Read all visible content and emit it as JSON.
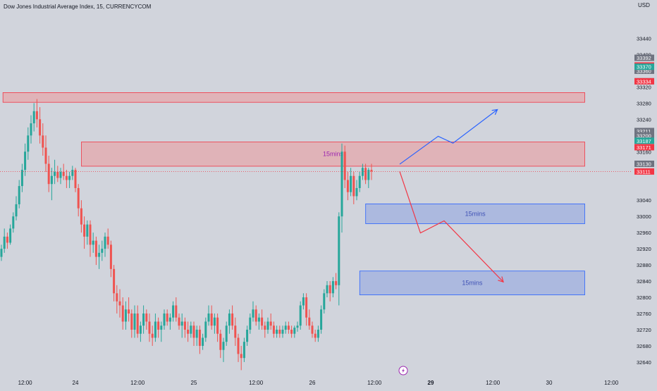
{
  "header": {
    "title": "Dow Jones Industrial Average Index, 15, CURRENCYCOM",
    "currency": "USD"
  },
  "colors": {
    "background": "#d1d4dc",
    "up": "#26a69a",
    "down": "#ef5350",
    "supply_fill": "#e8a1a4",
    "demand_fill": "#9fb0e0",
    "bull_arrow": "#2962ff",
    "bear_arrow": "#f23645",
    "price_line": "#f23645"
  },
  "chart_data": {
    "type": "candlestick",
    "title": "Dow Jones Industrial Average Index, 15, CURRENCYCOM",
    "ylabel": "USD",
    "ylim": [
      32612,
      33500
    ],
    "y_ticks": [
      33440,
      33400,
      33320,
      33280,
      33240,
      33160,
      33040,
      33000,
      32960,
      32920,
      32880,
      32840,
      32800,
      32760,
      32720,
      32680,
      32640
    ],
    "x_tick_labels": [
      {
        "label": "12:00",
        "bar": 8,
        "bold": false
      },
      {
        "label": "24",
        "bar": 25,
        "bold": false
      },
      {
        "label": "12:00",
        "bar": 46,
        "bold": false
      },
      {
        "label": "25",
        "bar": 65,
        "bold": false
      },
      {
        "label": "12:00",
        "bar": 86,
        "bold": false
      },
      {
        "label": "26",
        "bar": 105,
        "bold": false
      },
      {
        "label": "12:00",
        "bar": 126,
        "bold": false
      },
      {
        "label": "29",
        "bar": 145,
        "bold": true
      },
      {
        "label": "12:00",
        "bar": 166,
        "bold": false
      },
      {
        "label": "30",
        "bar": 185,
        "bold": false
      },
      {
        "label": "12:00",
        "bar": 206,
        "bold": false
      }
    ],
    "price_tags": [
      {
        "value": 33392,
        "label": "33392",
        "color": "#6f7380"
      },
      {
        "value": 33373,
        "label": "33373",
        "color": "#f23645"
      },
      {
        "value": 33360,
        "label": "33360",
        "color": "#6f7380"
      },
      {
        "value": 33370,
        "label": "33370",
        "color": "#26a69a"
      },
      {
        "value": 33334,
        "label": "33334",
        "color": "#6f7380"
      },
      {
        "value": 33334,
        "label": "33334",
        "color": "#f23645"
      },
      {
        "value": 33211,
        "label": "33211",
        "color": "#6f7380"
      },
      {
        "value": 33200,
        "label": "33200",
        "color": "#6f7380"
      },
      {
        "value": 33187,
        "label": "33187",
        "color": "#26a69a"
      },
      {
        "value": 33171,
        "label": "33171",
        "color": "#f23645"
      },
      {
        "value": 33130,
        "label": "33130",
        "color": "#6f7380"
      },
      {
        "value": 33111,
        "label": "33111",
        "color": "#f23645"
      }
    ],
    "last_price": 33111,
    "zones": [
      {
        "kind": "supply",
        "x0": 1.0,
        "x1": 197.5,
        "top": 33306,
        "bottom": 33282,
        "label": ""
      },
      {
        "kind": "supply",
        "x0": 27.5,
        "x1": 197.5,
        "top": 33184,
        "bottom": 33124,
        "label": "15mins"
      },
      {
        "kind": "demand",
        "x0": 123.5,
        "x1": 197.5,
        "top": 33031,
        "bottom": 32982,
        "label": "15mins"
      },
      {
        "kind": "demand",
        "x0": 121.5,
        "x1": 197.5,
        "top": 32865,
        "bottom": 32806,
        "label": "15mins"
      }
    ],
    "projections": [
      {
        "kind": "bullish",
        "points": [
          [
            135,
            33129
          ],
          [
            148,
            33198
          ],
          [
            153,
            33181
          ],
          [
            168,
            33264
          ]
        ]
      },
      {
        "kind": "bearish",
        "points": [
          [
            135,
            33111
          ],
          [
            142,
            32959
          ],
          [
            150,
            32989
          ],
          [
            170,
            32838
          ]
        ]
      }
    ],
    "candles": [
      [
        32900,
        32930,
        32890,
        32920
      ],
      [
        32920,
        32970,
        32910,
        32950
      ],
      [
        32950,
        32960,
        32920,
        32935
      ],
      [
        32935,
        32980,
        32930,
        32970
      ],
      [
        32970,
        33010,
        32960,
        33000
      ],
      [
        33000,
        33050,
        32990,
        33030
      ],
      [
        33030,
        33090,
        33020,
        33075
      ],
      [
        33075,
        33130,
        33060,
        33115
      ],
      [
        33115,
        33180,
        33100,
        33160
      ],
      [
        33160,
        33220,
        33140,
        33200
      ],
      [
        33200,
        33250,
        33180,
        33230
      ],
      [
        33230,
        33280,
        33210,
        33260
      ],
      [
        33260,
        33290,
        33220,
        33240
      ],
      [
        33240,
        33270,
        33180,
        33200
      ],
      [
        33200,
        33230,
        33150,
        33170
      ],
      [
        33170,
        33200,
        33110,
        33130
      ],
      [
        33130,
        33150,
        33060,
        33080
      ],
      [
        33080,
        33120,
        33040,
        33100
      ],
      [
        33100,
        33140,
        33080,
        33110
      ],
      [
        33110,
        33125,
        33085,
        33095
      ],
      [
        33095,
        33120,
        33080,
        33110
      ],
      [
        33110,
        33130,
        33090,
        33100
      ],
      [
        33100,
        33115,
        33070,
        33090
      ],
      [
        33090,
        33110,
        33070,
        33100
      ],
      [
        33100,
        33125,
        33090,
        33115
      ],
      [
        33115,
        33120,
        33060,
        33070
      ],
      [
        33070,
        33080,
        33000,
        33020
      ],
      [
        33020,
        33040,
        32960,
        32980
      ],
      [
        32980,
        33000,
        32920,
        32950
      ],
      [
        32950,
        32990,
        32930,
        32980
      ],
      [
        32980,
        32990,
        32900,
        32930
      ],
      [
        32930,
        32960,
        32910,
        32940
      ],
      [
        32940,
        32950,
        32880,
        32900
      ],
      [
        32900,
        32930,
        32870,
        32910
      ],
      [
        32910,
        32940,
        32890,
        32920
      ],
      [
        32920,
        32960,
        32900,
        32950
      ],
      [
        32950,
        32970,
        32920,
        32930
      ],
      [
        32930,
        32940,
        32850,
        32870
      ],
      [
        32870,
        32880,
        32790,
        32810
      ],
      [
        32810,
        32830,
        32760,
        32790
      ],
      [
        32790,
        32820,
        32750,
        32780
      ],
      [
        32780,
        32800,
        32720,
        32740
      ],
      [
        32740,
        32790,
        32720,
        32770
      ],
      [
        32770,
        32800,
        32740,
        32760
      ],
      [
        32760,
        32770,
        32700,
        32720
      ],
      [
        32720,
        32780,
        32700,
        32760
      ],
      [
        32760,
        32780,
        32700,
        32710
      ],
      [
        32710,
        32740,
        32690,
        32730
      ],
      [
        32730,
        32780,
        32710,
        32760
      ],
      [
        32760,
        32770,
        32720,
        32740
      ],
      [
        32740,
        32760,
        32690,
        32710
      ],
      [
        32710,
        32730,
        32680,
        32700
      ],
      [
        32700,
        32760,
        32690,
        32740
      ],
      [
        32740,
        32750,
        32700,
        32720
      ],
      [
        32720,
        32740,
        32690,
        32730
      ],
      [
        32730,
        32770,
        32720,
        32760
      ],
      [
        32760,
        32770,
        32730,
        32740
      ],
      [
        32740,
        32760,
        32720,
        32750
      ],
      [
        32750,
        32790,
        32740,
        32780
      ],
      [
        32780,
        32800,
        32740,
        32750
      ],
      [
        32750,
        32760,
        32720,
        32730
      ],
      [
        32730,
        32760,
        32700,
        32740
      ],
      [
        32740,
        32750,
        32700,
        32720
      ],
      [
        32720,
        32740,
        32690,
        32710
      ],
      [
        32710,
        32740,
        32700,
        32730
      ],
      [
        32730,
        32740,
        32680,
        32700
      ],
      [
        32700,
        32730,
        32680,
        32720
      ],
      [
        32720,
        32730,
        32660,
        32680
      ],
      [
        32680,
        32710,
        32670,
        32700
      ],
      [
        32700,
        32750,
        32690,
        32740
      ],
      [
        32740,
        32780,
        32730,
        32760
      ],
      [
        32760,
        32780,
        32720,
        32730
      ],
      [
        32730,
        32760,
        32710,
        32750
      ],
      [
        32750,
        32760,
        32690,
        32710
      ],
      [
        32710,
        32720,
        32650,
        32670
      ],
      [
        32670,
        32700,
        32640,
        32690
      ],
      [
        32690,
        32740,
        32680,
        32730
      ],
      [
        32730,
        32770,
        32710,
        32760
      ],
      [
        32760,
        32780,
        32720,
        32730
      ],
      [
        32730,
        32750,
        32680,
        32700
      ],
      [
        32700,
        32710,
        32640,
        32660
      ],
      [
        32660,
        32680,
        32620,
        32650
      ],
      [
        32650,
        32700,
        32640,
        32690
      ],
      [
        32690,
        32730,
        32680,
        32720
      ],
      [
        32720,
        32760,
        32710,
        32750
      ],
      [
        32750,
        32790,
        32740,
        32770
      ],
      [
        32770,
        32780,
        32730,
        32740
      ],
      [
        32740,
        32760,
        32720,
        32750
      ],
      [
        32750,
        32770,
        32720,
        32730
      ],
      [
        32730,
        32740,
        32700,
        32720
      ],
      [
        32720,
        32750,
        32710,
        32740
      ],
      [
        32740,
        32760,
        32720,
        32730
      ],
      [
        32730,
        32740,
        32700,
        32710
      ],
      [
        32710,
        32730,
        32700,
        32720
      ],
      [
        32720,
        32730,
        32700,
        32710
      ],
      [
        32710,
        32730,
        32700,
        32720
      ],
      [
        32720,
        32740,
        32710,
        32730
      ],
      [
        32730,
        32740,
        32710,
        32720
      ],
      [
        32720,
        32730,
        32700,
        32710
      ],
      [
        32710,
        32730,
        32700,
        32725
      ],
      [
        32725,
        32740,
        32715,
        32730
      ],
      [
        32730,
        32790,
        32720,
        32780
      ],
      [
        32780,
        32810,
        32770,
        32800
      ],
      [
        32800,
        32810,
        32730,
        32750
      ],
      [
        32750,
        32770,
        32720,
        32730
      ],
      [
        32730,
        32740,
        32700,
        32710
      ],
      [
        32710,
        32720,
        32690,
        32700
      ],
      [
        32700,
        32730,
        32690,
        32720
      ],
      [
        32720,
        32780,
        32710,
        32770
      ],
      [
        32770,
        32820,
        32760,
        32810
      ],
      [
        32810,
        32840,
        32800,
        32830
      ],
      [
        32830,
        32840,
        32790,
        32810
      ],
      [
        32810,
        32850,
        32800,
        32840
      ],
      [
        32840,
        32860,
        32820,
        32830
      ],
      [
        32830,
        33010,
        32780,
        33000
      ],
      [
        33000,
        33180,
        32960,
        33160
      ],
      [
        33160,
        33175,
        33070,
        33090
      ],
      [
        33090,
        33110,
        33040,
        33060
      ],
      [
        33060,
        33120,
        33050,
        33100
      ],
      [
        33100,
        33110,
        33030,
        33050
      ],
      [
        33050,
        33090,
        33040,
        33070
      ],
      [
        33070,
        33110,
        33060,
        33100
      ],
      [
        33100,
        33130,
        33090,
        33120
      ],
      [
        33120,
        33130,
        33080,
        33090
      ],
      [
        33090,
        33120,
        33070,
        33115
      ],
      [
        33115,
        33130,
        33090,
        33111
      ]
    ]
  }
}
